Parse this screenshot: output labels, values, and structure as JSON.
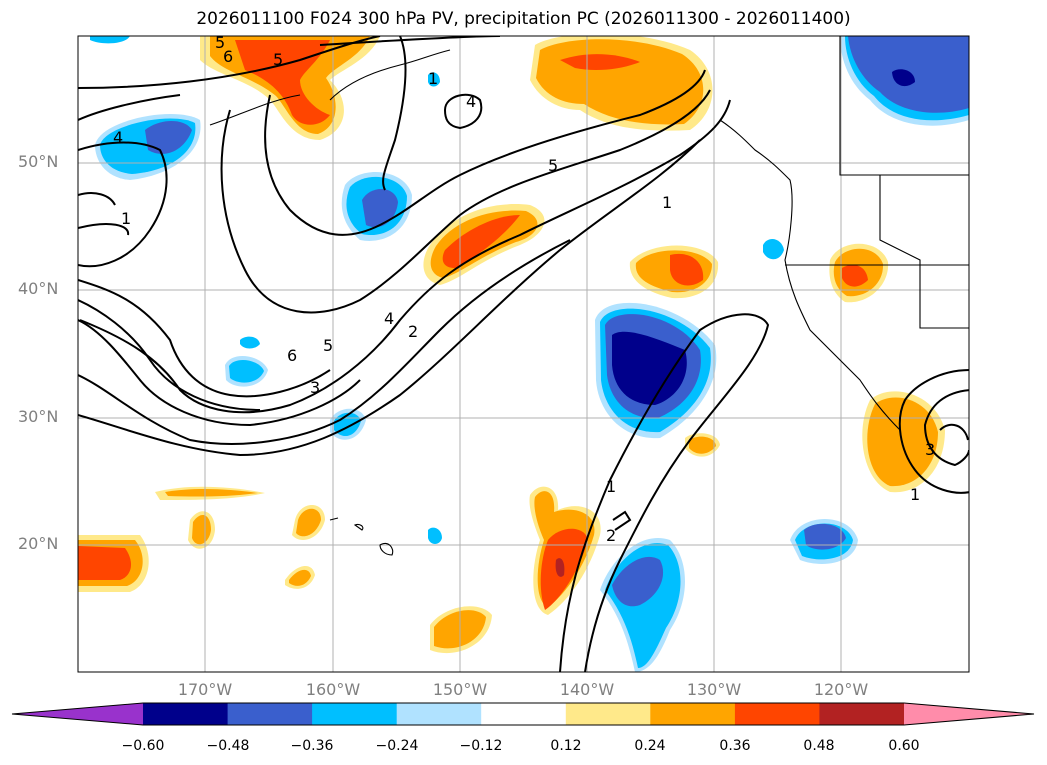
{
  "title": "2026011100 F024 300 hPa PV, precipitation PC (2026011300 - 2026011400)",
  "lat_labels": [
    "50°N",
    "40°N",
    "30°N",
    "20°N"
  ],
  "lon_labels": [
    "170°W",
    "160°W",
    "150°W",
    "140°W",
    "130°W",
    "120°W"
  ],
  "contour_labels": [
    "6",
    "5",
    "5",
    "4",
    "1",
    "4",
    "1",
    "5",
    "1",
    "6",
    "5",
    "4",
    "2",
    "3",
    "1",
    "2",
    "3",
    "1"
  ],
  "colorbar": {
    "ticks": [
      "−0.60",
      "−0.48",
      "−0.36",
      "−0.24",
      "−0.12",
      "0.12",
      "0.24",
      "0.36",
      "0.48",
      "0.60"
    ],
    "colors": [
      "#9932cc",
      "#00008b",
      "#3a5fcd",
      "#00bfff",
      "#b0e2ff",
      "#ffffff",
      "#ffe98a",
      "#ffa500",
      "#ff4500",
      "#b22222",
      "#ff8caa"
    ]
  }
}
